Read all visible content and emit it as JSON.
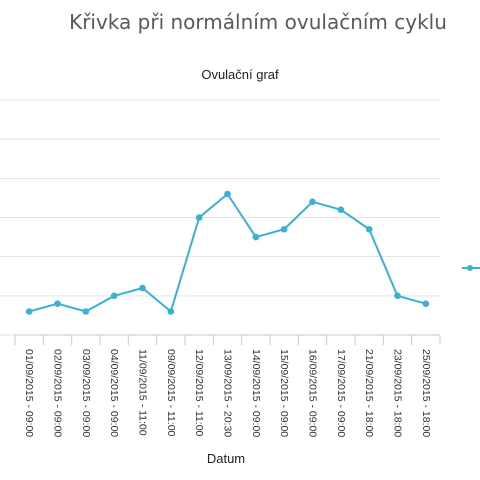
{
  "header": {
    "title": "Křivka při normálním ovulačním cyklu"
  },
  "colors": {
    "series": "#3ab0d4",
    "grid": "#e3e3e3",
    "axis": "#c8c8c8",
    "tick": "#555555"
  },
  "legend": {
    "placement": "right",
    "icon": "line-marker-icon"
  },
  "chart_data": {
    "type": "line",
    "title": "Ovulační graf",
    "xlabel": "Datum",
    "ylabel": "",
    "grid": true,
    "ylim": [
      0,
      6
    ],
    "categories": [
      "01/09/2015 - 09:00",
      "02/09/2015 - 09:00",
      "03/09/2015 - 09:00",
      "04/09/2015 - 09:00",
      "11/09/2015 - 11:00",
      "09/09/2015 - 11:00",
      "12/09/2015 - 11:00",
      "13/09/2015 - 20:30",
      "14/09/2015 - 09:00",
      "15/09/2015 - 09:00",
      "16/09/2015 - 09:00",
      "17/09/2015 - 09:00",
      "21/09/2015 - 18:00",
      "23/09/2015 - 18:00",
      "25/09/2015 - 18:00"
    ],
    "series": [
      {
        "values": [
          0.6,
          0.8,
          0.6,
          1.0,
          1.2,
          0.6,
          3.0,
          3.6,
          2.5,
          2.7,
          3.4,
          3.2,
          2.7,
          1.0,
          0.8
        ]
      }
    ]
  }
}
